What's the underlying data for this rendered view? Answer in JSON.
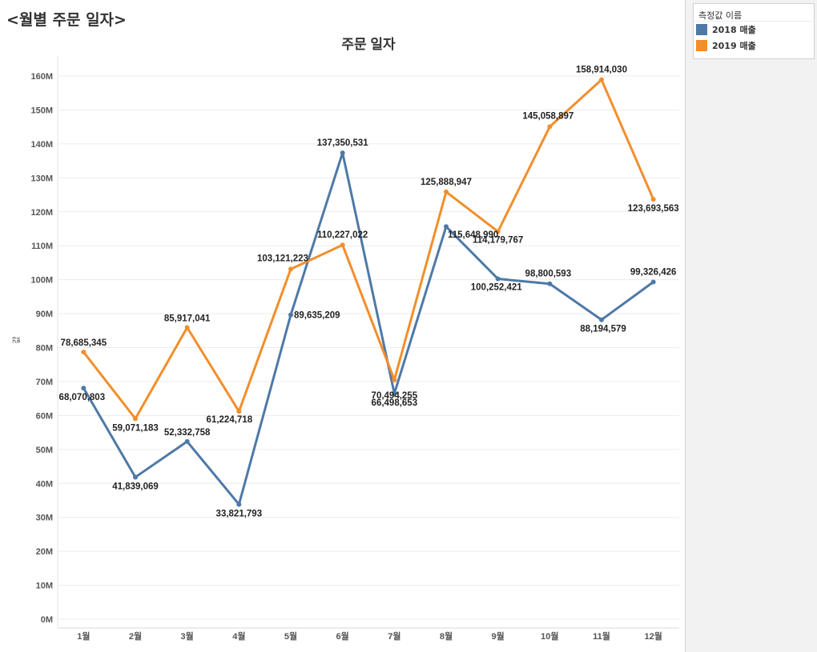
{
  "sheet_title": "<월별 주문 일자>",
  "legend": {
    "title": "측정값 이름",
    "items": [
      {
        "label": "2018 매출",
        "color": "#4e79a7"
      },
      {
        "label": "2019 매출",
        "color": "#f28e2b"
      }
    ]
  },
  "chart_data": {
    "type": "line",
    "title": "주문 일자",
    "ylabel": "값",
    "ylim": [
      0,
      165000000
    ],
    "yticks": [
      {
        "value": 0,
        "label": "0M"
      },
      {
        "value": 10000000,
        "label": "10M"
      },
      {
        "value": 20000000,
        "label": "20M"
      },
      {
        "value": 30000000,
        "label": "30M"
      },
      {
        "value": 40000000,
        "label": "40M"
      },
      {
        "value": 50000000,
        "label": "50M"
      },
      {
        "value": 60000000,
        "label": "60M"
      },
      {
        "value": 70000000,
        "label": "70M"
      },
      {
        "value": 80000000,
        "label": "80M"
      },
      {
        "value": 90000000,
        "label": "90M"
      },
      {
        "value": 100000000,
        "label": "100M"
      },
      {
        "value": 110000000,
        "label": "110M"
      },
      {
        "value": 120000000,
        "label": "120M"
      },
      {
        "value": 130000000,
        "label": "130M"
      },
      {
        "value": 140000000,
        "label": "140M"
      },
      {
        "value": 150000000,
        "label": "150M"
      },
      {
        "value": 160000000,
        "label": "160M"
      }
    ],
    "categories": [
      "1월",
      "2월",
      "3월",
      "4월",
      "5월",
      "6월",
      "7월",
      "8월",
      "9월",
      "10월",
      "11월",
      "12월"
    ],
    "series": [
      {
        "name": "2018 매출",
        "color": "#4e79a7",
        "values": [
          68070803,
          41839069,
          52332758,
          33821793,
          89635209,
          137350531,
          66498653,
          115648990,
          100252421,
          98800593,
          88194579,
          99326426
        ],
        "labels": [
          "68,070,803",
          "41,839,069",
          "52,332,758",
          "33,821,793",
          "89,635,209",
          "137,350,531",
          "66,498,653",
          "115,648,990",
          "100,252,421",
          "98,800,593",
          "88,194,579",
          "99,326,426"
        ]
      },
      {
        "name": "2019 매출",
        "color": "#f28e2b",
        "values": [
          78685345,
          59071183,
          85917041,
          61224718,
          103121223,
          110227022,
          70494255,
          125888947,
          114179767,
          145058897,
          158914030,
          123693563
        ],
        "labels": [
          "78,685,345",
          "59,071,183",
          "85,917,041",
          "61,224,718",
          "103,121,223",
          "110,227,022",
          "70,494,255",
          "125,888,947",
          "114,179,767",
          "145,058,897",
          "158,914,030",
          "123,693,563"
        ]
      }
    ],
    "grid": true,
    "legend_position": "top-right"
  }
}
